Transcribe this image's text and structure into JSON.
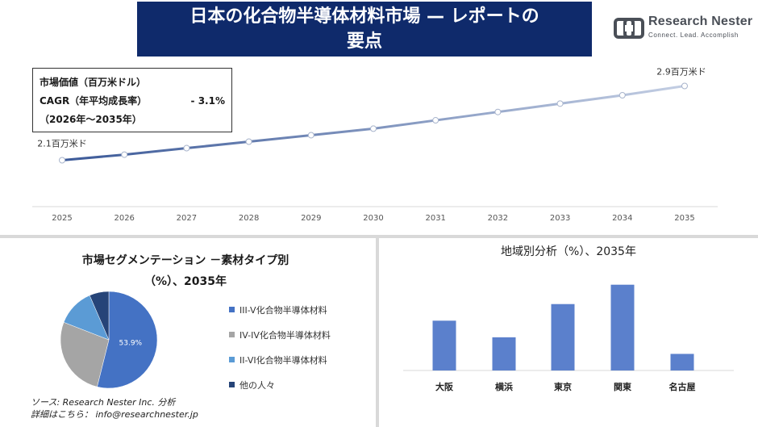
{
  "header": {
    "title_line1": "日本の化合物半導体材料市場 — レポートの",
    "title_line2": "要点",
    "logo_name": "Research Nester",
    "logo_tagline": "Connect. Lead. Accomplish"
  },
  "info_box": {
    "line1": "市場価値（百万米ドル）",
    "cagr_label": "CAGR（年平均成長率）",
    "cagr_value": "-  3.1%",
    "period": "（2026年～2035年）"
  },
  "colors": {
    "banner": "#0f2a6b",
    "line_start": "#3b5998",
    "line_end": "#c3cee3",
    "bar": "#5b80cc"
  },
  "chart_data": [
    {
      "type": "line",
      "x": [
        "2025",
        "2026",
        "2027",
        "2028",
        "2029",
        "2030",
        "2031",
        "2032",
        "2033",
        "2034",
        "2035"
      ],
      "values": [
        2.1,
        2.16,
        2.23,
        2.3,
        2.37,
        2.44,
        2.53,
        2.62,
        2.71,
        2.8,
        2.9
      ],
      "annotations": [
        {
          "x": "2025",
          "label": "2.1百万米ド"
        },
        {
          "x": "2035",
          "label": "2.9百万米ド"
        }
      ],
      "ylim": [
        1.6,
        3.2
      ],
      "grid": false
    },
    {
      "type": "pie",
      "title_line1": "市場セグメンテーション －素材タイプ別",
      "title_line2": "（%）、2035年",
      "slices": [
        {
          "label": "III-V化合物半導体材料",
          "value": 53.9,
          "color": "#4472c4",
          "data_label": "53.9%"
        },
        {
          "label": "IV-IV化合物半導体材料",
          "value": 27.0,
          "color": "#a5a5a5",
          "data_label": ""
        },
        {
          "label": "II-VI化合物半導体材料",
          "value": 12.6,
          "color": "#5b9bd5",
          "data_label": ""
        },
        {
          "label": "他の人々",
          "value": 6.5,
          "color": "#264478",
          "data_label": ""
        }
      ],
      "legend_placement": "right"
    },
    {
      "type": "bar",
      "title": "地域別分析（%）、2035年",
      "categories": [
        "大阪",
        "横浜",
        "東京",
        "関東",
        "名古屋"
      ],
      "values": [
        18,
        12,
        24,
        31,
        6
      ],
      "ylim": [
        0,
        35
      ]
    }
  ],
  "source": {
    "line1": "ソース: Research Nester Inc. 分析",
    "line2": "詳細はこちら：  info@researchnester.jp"
  }
}
